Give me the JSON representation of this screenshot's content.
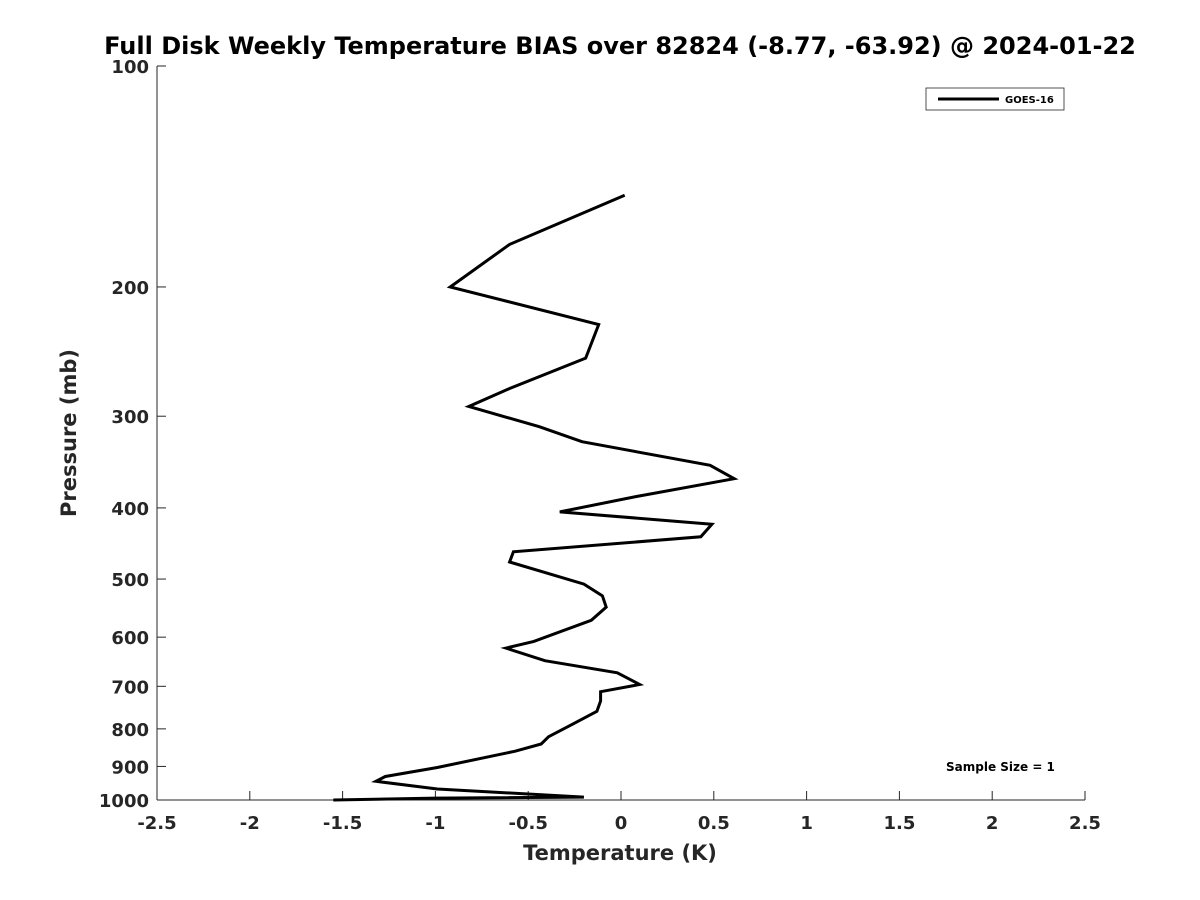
{
  "chart_data": {
    "type": "line",
    "title": "Full Disk Weekly Temperature BIAS over 82824 (-8.77, -63.92) @ 2024-01-22",
    "xlabel": "Temperature (K)",
    "ylabel": "Pressure (mb)",
    "xlim": [
      -2.5,
      2.5
    ],
    "ylim": [
      100,
      1000
    ],
    "yscale": "log",
    "y_reversed": true,
    "x_ticks": [
      -2.5,
      -2,
      -1.5,
      -1,
      -0.5,
      0,
      0.5,
      1,
      1.5,
      2,
      2.5
    ],
    "x_tick_labels": [
      "-2.5",
      "-2",
      "-1.5",
      "-1",
      "-0.5",
      "0",
      "0.5",
      "1",
      "1.5",
      "2",
      "2.5"
    ],
    "y_ticks": [
      100,
      200,
      300,
      400,
      500,
      600,
      700,
      800,
      900,
      1000
    ],
    "y_tick_labels": [
      "100",
      "200",
      "300",
      "400",
      "500",
      "600",
      "700",
      "800",
      "900",
      "1000"
    ],
    "grid": false,
    "legend_position": "top-right",
    "annotation": "Sample Size = 1",
    "series": [
      {
        "name": "GOES-16",
        "color": "#000000",
        "points": [
          [
            0.02,
            150
          ],
          [
            -0.6,
            175
          ],
          [
            -0.92,
            200
          ],
          [
            -0.12,
            225
          ],
          [
            -0.19,
            250
          ],
          [
            -0.6,
            275
          ],
          [
            -0.82,
            291
          ],
          [
            -0.44,
            310
          ],
          [
            -0.21,
            325
          ],
          [
            0.48,
            350
          ],
          [
            0.61,
            365
          ],
          [
            0.08,
            386
          ],
          [
            -0.33,
            405
          ],
          [
            0.49,
            421
          ],
          [
            0.43,
            438
          ],
          [
            -0.58,
            459
          ],
          [
            -0.6,
            474
          ],
          [
            -0.2,
            508
          ],
          [
            -0.1,
            527
          ],
          [
            -0.08,
            546
          ],
          [
            -0.16,
            569
          ],
          [
            -0.47,
            608
          ],
          [
            -0.62,
            621
          ],
          [
            -0.41,
            646
          ],
          [
            -0.02,
            671
          ],
          [
            0.1,
            696
          ],
          [
            -0.11,
            712
          ],
          [
            -0.11,
            733
          ],
          [
            -0.13,
            757
          ],
          [
            -0.28,
            793
          ],
          [
            -0.39,
            820
          ],
          [
            -0.43,
            839
          ],
          [
            -0.57,
            858
          ],
          [
            -0.99,
            903
          ],
          [
            -1.27,
            929
          ],
          [
            -1.32,
            943
          ],
          [
            -0.99,
            966
          ],
          [
            -0.2,
            991
          ],
          [
            -1.0,
            994
          ],
          [
            -1.55,
            1000
          ]
        ]
      }
    ]
  }
}
